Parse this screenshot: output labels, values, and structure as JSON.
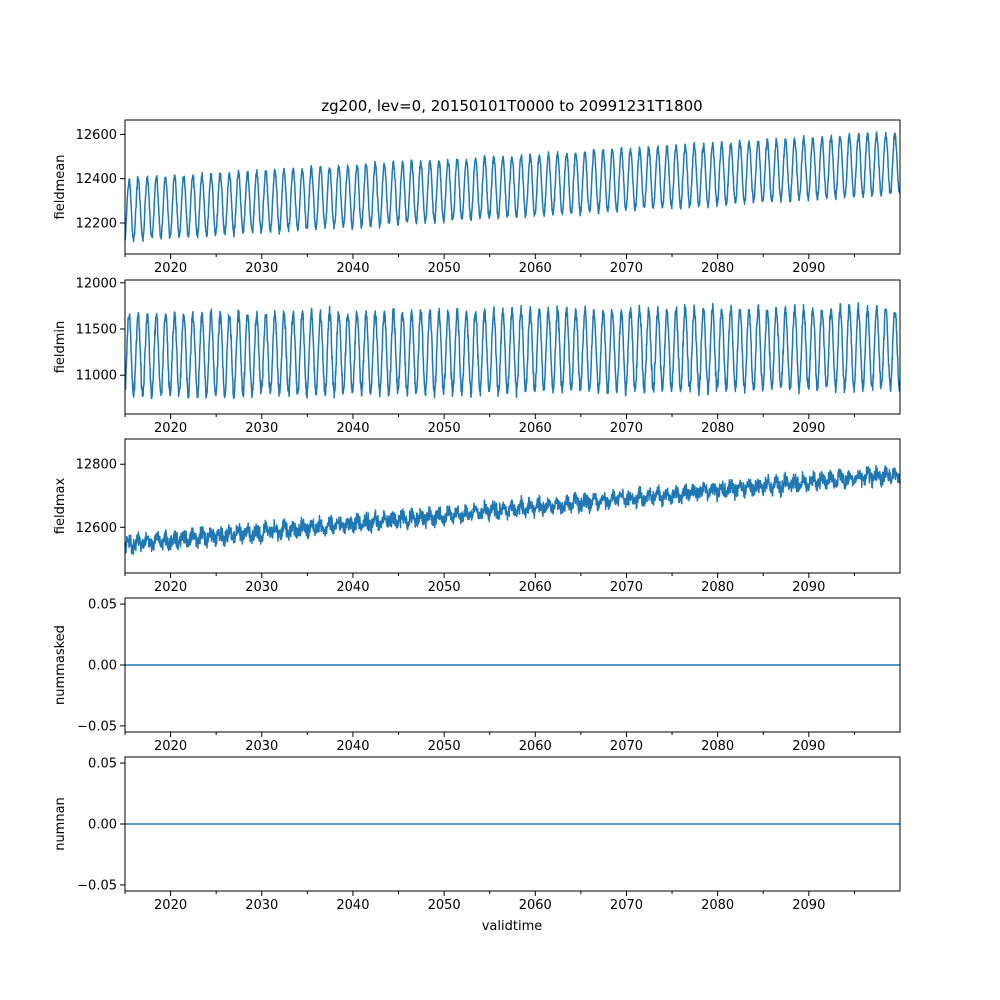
{
  "figure": {
    "title": "zg200, lev=0, 20150101T0000 to 20991231T1800",
    "xlabel": "validtime"
  },
  "chart_data": [
    {
      "type": "line",
      "ylabel": "fieldmean",
      "xlim": [
        2015.0,
        2100.0
      ],
      "ylim": [
        12060,
        12665
      ],
      "xticks": [
        2020,
        2030,
        2040,
        2050,
        2060,
        2070,
        2080,
        2090
      ],
      "xtick_labels": [
        "2020",
        "2030",
        "2040",
        "2050",
        "2060",
        "2070",
        "2080",
        "2090"
      ],
      "yticks": [
        12200,
        12400,
        12600
      ],
      "ytick_labels": [
        "12200",
        "12400",
        "12600"
      ],
      "grid": false,
      "color": "#1f77b4",
      "trend": {
        "x": [
          2015,
          2100
        ],
        "y": [
          12260,
          12470
        ]
      },
      "seasonal_amplitude": 135,
      "noise": 20,
      "series": [
        {
          "x": [
            2015,
            2025,
            2035,
            2045,
            2055,
            2065,
            2075,
            2085,
            2095,
            2100
          ],
          "y_min": [
            12090,
            12100,
            12130,
            12160,
            12190,
            12210,
            12240,
            12290,
            12310,
            12330
          ],
          "y_max": [
            12410,
            12440,
            12460,
            12500,
            12540,
            12570,
            12600,
            12620,
            12640,
            12600
          ]
        }
      ]
    },
    {
      "type": "line",
      "ylabel": "fieldmin",
      "xlim": [
        2015.0,
        2100.0
      ],
      "ylim": [
        10580,
        12030
      ],
      "xticks": [
        2020,
        2030,
        2040,
        2050,
        2060,
        2070,
        2080,
        2090
      ],
      "xtick_labels": [
        "2020",
        "2030",
        "2040",
        "2050",
        "2060",
        "2070",
        "2080",
        "2090"
      ],
      "yticks": [
        11000,
        11500,
        12000
      ],
      "ytick_labels": [
        "11000",
        "11500",
        "12000"
      ],
      "grid": false,
      "color": "#1f77b4",
      "trend": {
        "x": [
          2015,
          2100
        ],
        "y": [
          11220,
          11300
        ]
      },
      "seasonal_amplitude": 430,
      "noise": 80,
      "series": [
        {
          "x": [
            2015,
            2025,
            2035,
            2045,
            2055,
            2065,
            2075,
            2085,
            2095,
            2100
          ],
          "y_min": [
            10620,
            10650,
            10680,
            10700,
            10700,
            10750,
            10760,
            10780,
            10800,
            10820
          ],
          "y_max": [
            11800,
            11850,
            11850,
            11820,
            11900,
            11950,
            11900,
            11920,
            11850,
            11650
          ]
        }
      ]
    },
    {
      "type": "line",
      "ylabel": "fieldmax",
      "xlim": [
        2015.0,
        2100.0
      ],
      "ylim": [
        12455,
        12880
      ],
      "xticks": [
        2020,
        2030,
        2040,
        2050,
        2060,
        2070,
        2080,
        2090
      ],
      "xtick_labels": [
        "2020",
        "2030",
        "2040",
        "2050",
        "2060",
        "2070",
        "2080",
        "2090"
      ],
      "yticks": [
        12600,
        12800
      ],
      "ytick_labels": [
        "12600",
        "12800"
      ],
      "grid": false,
      "color": "#1f77b4",
      "trend": {
        "x": [
          2015,
          2100
        ],
        "y": [
          12545,
          12770
        ]
      },
      "seasonal_amplitude": 12,
      "noise": 30,
      "series": [
        {
          "x": [
            2015,
            2025,
            2035,
            2045,
            2055,
            2065,
            2075,
            2085,
            2095,
            2100
          ],
          "y_min": [
            12460,
            12490,
            12520,
            12560,
            12590,
            12620,
            12650,
            12680,
            12710,
            12720
          ],
          "y_max": [
            12640,
            12660,
            12680,
            12700,
            12740,
            12780,
            12800,
            12830,
            12860,
            12840
          ]
        }
      ]
    },
    {
      "type": "line",
      "ylabel": "nummasked",
      "xlim": [
        2015.0,
        2100.0
      ],
      "ylim": [
        -0.055,
        0.055
      ],
      "xticks": [
        2020,
        2030,
        2040,
        2050,
        2060,
        2070,
        2080,
        2090
      ],
      "xtick_labels": [
        "2020",
        "2030",
        "2040",
        "2050",
        "2060",
        "2070",
        "2080",
        "2090"
      ],
      "yticks": [
        -0.05,
        0.0,
        0.05
      ],
      "ytick_labels": [
        "−0.05",
        "0.00",
        "0.05"
      ],
      "grid": false,
      "color": "#1f77b4",
      "series": [
        {
          "x": [
            2015,
            2100
          ],
          "y": [
            0,
            0
          ]
        }
      ]
    },
    {
      "type": "line",
      "ylabel": "numnan",
      "xlim": [
        2015.0,
        2100.0
      ],
      "ylim": [
        -0.055,
        0.055
      ],
      "xticks": [
        2020,
        2030,
        2040,
        2050,
        2060,
        2070,
        2080,
        2090
      ],
      "xtick_labels": [
        "2020",
        "2030",
        "2040",
        "2050",
        "2060",
        "2070",
        "2080",
        "2090"
      ],
      "yticks": [
        -0.05,
        0.0,
        0.05
      ],
      "ytick_labels": [
        "−0.05",
        "0.00",
        "0.05"
      ],
      "grid": false,
      "color": "#1f77b4",
      "series": [
        {
          "x": [
            2015,
            2100
          ],
          "y": [
            0,
            0
          ]
        }
      ]
    }
  ]
}
